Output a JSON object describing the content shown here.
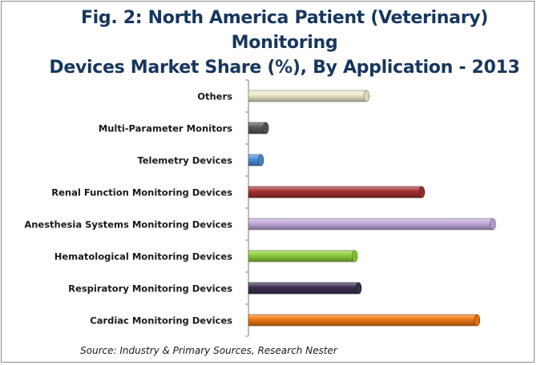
{
  "title_lines": [
    "Fig. 2: North America Patient (Veterinary) Monitoring",
    "Devices Market Share (%), By Application - 2013"
  ],
  "source": "Source: Industry & Primary Sources, Research Nester",
  "colors": {
    "title": "#17365d",
    "axis": "#7f7f7f",
    "label": "#1a1a1a"
  },
  "chart_data": {
    "type": "bar",
    "orientation": "horizontal",
    "title": "Fig. 2: North America Patient (Veterinary) Monitoring Devices Market Share (%), By Application - 2013",
    "xlabel": "",
    "ylabel": "",
    "grid": false,
    "legend": "none",
    "xlim": [
      0,
      25
    ],
    "categories": [
      "Others",
      "Multi-Parameter Monitors",
      "Telemetry Devices",
      "Renal Function Monitoring Devices",
      "Anesthesia Systems Monitoring Devices",
      "Hematological Monitoring Devices",
      "Respiratory Monitoring Devices",
      "Cardiac Monitoring Devices"
    ],
    "values": [
      12.2,
      2.0,
      1.5,
      17.8,
      25.0,
      11.0,
      11.4,
      23.4
    ],
    "bar_colors": [
      "#eeeacc",
      "#595959",
      "#4f8fd8",
      "#a63232",
      "#c3a9dd",
      "#8ecf3d",
      "#3f3153",
      "#f07a14"
    ]
  }
}
